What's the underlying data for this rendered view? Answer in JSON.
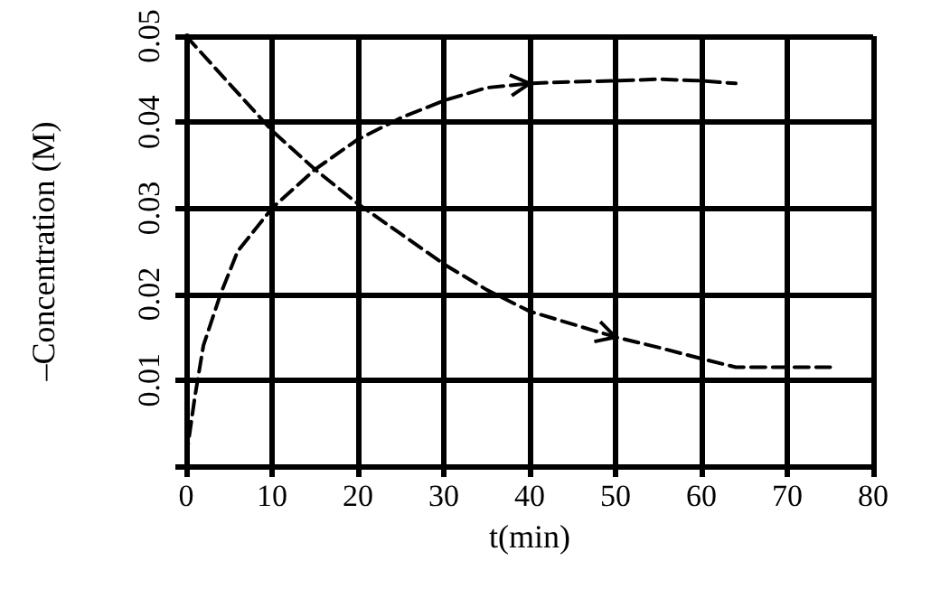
{
  "chart_data": {
    "type": "line",
    "xlabel": "t(min)",
    "ylabel": "–Concentration (M)",
    "xlim": [
      0,
      80
    ],
    "xticks": [
      0,
      10,
      20,
      30,
      40,
      50,
      60,
      70,
      80
    ],
    "ylim": [
      0,
      0.05
    ],
    "yticks": [
      {
        "value": 0,
        "label": null
      },
      0.01,
      0.02,
      0.03,
      0.04,
      0.05
    ],
    "grid": true,
    "marker": "none",
    "line_style": "dashed",
    "series": [
      {
        "color": "#000000",
        "x": [
          0,
          5,
          10,
          15,
          20,
          25,
          30,
          35,
          40,
          45,
          50,
          55,
          60,
          64,
          70,
          75
        ],
        "values": [
          0.05,
          0.0445,
          0.039,
          0.0345,
          0.0305,
          0.027,
          0.0235,
          0.0205,
          0.018,
          0.0165,
          0.015,
          0.0138,
          0.0125,
          0.0115,
          0.0115,
          0.0115
        ]
      },
      {
        "color": "#000000",
        "x": [
          0,
          1,
          2,
          4,
          6,
          10,
          15,
          20,
          25,
          30,
          35,
          40,
          45,
          50,
          55,
          60,
          64
        ],
        "values": [
          0.001,
          0.008,
          0.014,
          0.02,
          0.025,
          0.03,
          0.0345,
          0.038,
          0.0405,
          0.0425,
          0.044,
          0.0445,
          0.0447,
          0.0448,
          0.045,
          0.0448,
          0.0445
        ]
      }
    ]
  }
}
